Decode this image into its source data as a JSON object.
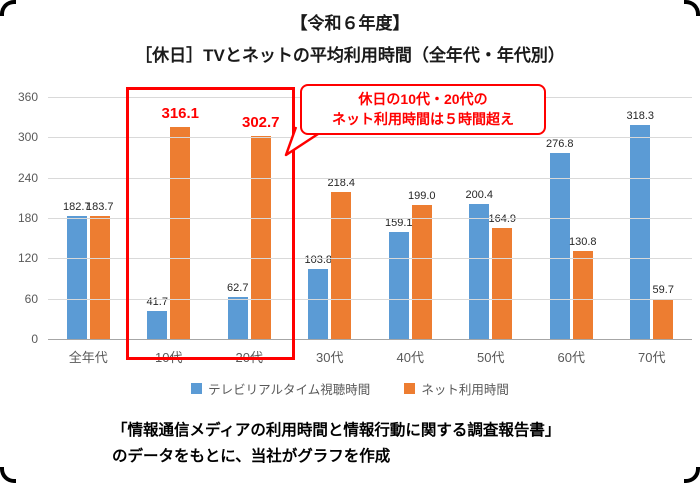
{
  "title": {
    "line1": "【令和６年度】",
    "line2": "［休日］TVとネットの平均利用時間（全年代・年代別）"
  },
  "chart_data": {
    "type": "bar",
    "categories": [
      "全年代",
      "10代",
      "20代",
      "30代",
      "40代",
      "50代",
      "60代",
      "70代"
    ],
    "series": [
      {
        "name": "テレビリアルタイム視聴時間",
        "color": "#5B9BD5",
        "values": [
          182.7,
          41.7,
          62.7,
          103.8,
          159.1,
          200.4,
          276.8,
          318.3
        ]
      },
      {
        "name": "ネット利用時間",
        "color": "#ED7D31",
        "values": [
          183.7,
          316.1,
          302.7,
          218.4,
          199.0,
          164.9,
          130.8,
          59.7
        ]
      }
    ],
    "ylim": [
      0,
      360
    ],
    "yticks": [
      360,
      300,
      240,
      180,
      120,
      60,
      0
    ],
    "grid": true,
    "legend_position": "bottom",
    "highlight": {
      "series": 1,
      "indices": [
        1,
        2
      ],
      "color": "#FF0000"
    },
    "highlighted_categories": [
      "10代",
      "20代"
    ]
  },
  "annotation": {
    "line1": "休日の10代・20代の",
    "line2": "ネット利用時間は５時間超え",
    "color": "#FF0000"
  },
  "footer": {
    "line1": "「情報通信メディアの利用時間と情報行動に関する調査報告書」",
    "line2": "のデータをもとに、当社がグラフを作成"
  }
}
